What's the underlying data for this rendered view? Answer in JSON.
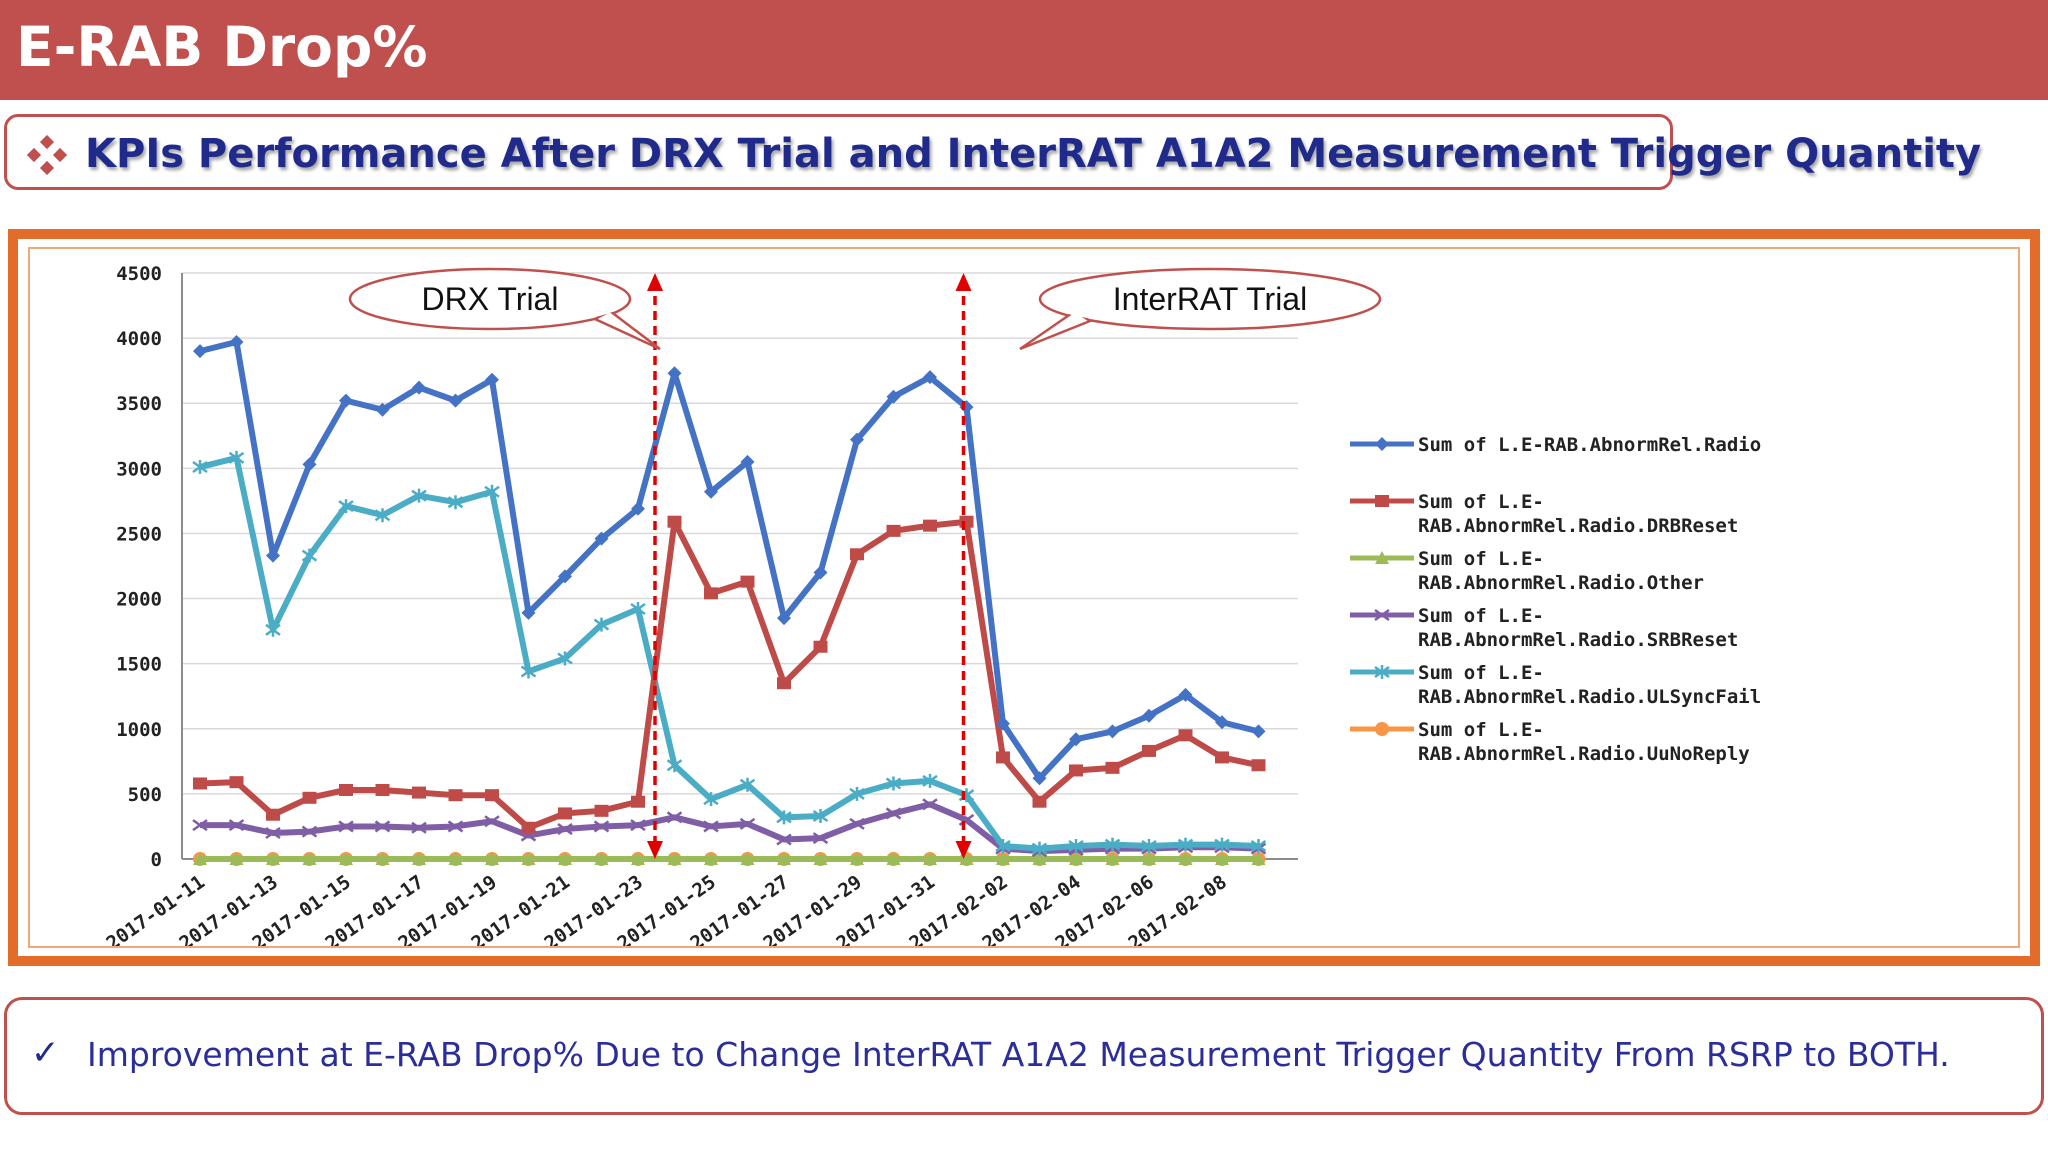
{
  "header": {
    "title": "E-RAB Drop%"
  },
  "subtitle": {
    "text": "KPIs Performance After DRX Trial and InterRAT A1A2 Measurement Trigger Quantity"
  },
  "note": {
    "check": "✓",
    "text": "Improvement at E-RAB Drop% Due to Change InterRAT A1A2 Measurement Trigger Quantity From RSRP to BOTH."
  },
  "chart_data": {
    "type": "line",
    "title": "",
    "xlabel": "",
    "ylabel": "",
    "ylim": [
      0,
      4500
    ],
    "yticks": [
      0,
      500,
      1000,
      1500,
      2000,
      2500,
      3000,
      3500,
      4000,
      4500
    ],
    "grid": "horizontal",
    "legend_position": "right",
    "x": [
      "2017-01-11",
      "2017-01-12",
      "2017-01-13",
      "2017-01-14",
      "2017-01-15",
      "2017-01-16",
      "2017-01-17",
      "2017-01-18",
      "2017-01-19",
      "2017-01-20",
      "2017-01-21",
      "2017-01-22",
      "2017-01-23",
      "2017-01-24",
      "2017-01-25",
      "2017-01-26",
      "2017-01-27",
      "2017-01-28",
      "2017-01-29",
      "2017-01-30",
      "2017-01-31",
      "2017-02-01",
      "2017-02-02",
      "2017-02-03",
      "2017-02-04",
      "2017-02-05",
      "2017-02-06",
      "2017-02-07",
      "2017-02-08",
      "2017-02-09"
    ],
    "x_tick_labels": [
      "2017-01-11",
      "2017-01-13",
      "2017-01-15",
      "2017-01-17",
      "2017-01-19",
      "2017-01-21",
      "2017-01-23",
      "2017-01-25",
      "2017-01-27",
      "2017-01-29",
      "2017-01-31",
      "2017-02-02",
      "2017-02-04",
      "2017-02-06",
      "2017-02-08"
    ],
    "series": [
      {
        "name": "Sum of L.E-RAB.AbnormRel.Radio",
        "color": "#4472c4",
        "marker": "diamond",
        "values": [
          3900,
          3970,
          2330,
          3030,
          3520,
          3450,
          3620,
          3520,
          3680,
          1890,
          2170,
          2460,
          2690,
          3730,
          2820,
          3050,
          1850,
          2200,
          3220,
          3550,
          3700,
          3470,
          1040,
          620,
          920,
          980,
          1100,
          1260,
          1050,
          980
        ]
      },
      {
        "name": "Sum of L.E-RAB.AbnormRel.Radio.DRBReset",
        "color": "#be4b48",
        "marker": "square",
        "values": [
          580,
          590,
          340,
          470,
          530,
          530,
          510,
          490,
          490,
          240,
          350,
          370,
          440,
          2590,
          2040,
          2130,
          1350,
          1630,
          2340,
          2520,
          2560,
          2590,
          780,
          440,
          680,
          700,
          830,
          950,
          780,
          720
        ]
      },
      {
        "name": "Sum of L.E-RAB.AbnormRel.Radio.Other",
        "color": "#9bbb59",
        "marker": "triangle",
        "values": [
          0,
          0,
          0,
          0,
          0,
          0,
          0,
          0,
          0,
          0,
          0,
          0,
          0,
          0,
          0,
          0,
          0,
          0,
          0,
          0,
          0,
          0,
          0,
          0,
          0,
          0,
          0,
          0,
          0,
          0
        ]
      },
      {
        "name": "Sum of L.E-RAB.AbnormRel.Radio.SRBReset",
        "color": "#7f5ea6",
        "marker": "x",
        "values": [
          260,
          260,
          200,
          210,
          250,
          250,
          240,
          250,
          290,
          180,
          230,
          250,
          260,
          320,
          250,
          270,
          150,
          160,
          270,
          350,
          420,
          300,
          80,
          60,
          70,
          80,
          80,
          90,
          90,
          80
        ]
      },
      {
        "name": "Sum of L.E-RAB.AbnormRel.Radio.ULSyncFail",
        "color": "#4bacc6",
        "marker": "star",
        "values": [
          3010,
          3080,
          1760,
          2330,
          2710,
          2640,
          2790,
          2740,
          2820,
          1440,
          1540,
          1800,
          1920,
          720,
          460,
          570,
          320,
          330,
          500,
          580,
          600,
          490,
          100,
          80,
          100,
          110,
          100,
          110,
          110,
          100
        ]
      },
      {
        "name": "Sum of L.E-RAB.AbnormRel.Radio.UuNoReply",
        "color": "#f79646",
        "marker": "circle",
        "values": [
          0,
          0,
          0,
          0,
          0,
          0,
          0,
          0,
          0,
          0,
          0,
          0,
          0,
          0,
          0,
          0,
          0,
          0,
          0,
          0,
          0,
          0,
          0,
          0,
          0,
          0,
          0,
          0,
          0,
          0
        ]
      }
    ],
    "legend_lines": [
      [
        "Sum of L.E-RAB.AbnormRel.Radio"
      ],
      [
        "Sum of L.E-",
        "RAB.AbnormRel.Radio.DRBReset"
      ],
      [
        "Sum of L.E-",
        "RAB.AbnormRel.Radio.Other"
      ],
      [
        "Sum of L.E-",
        "RAB.AbnormRel.Radio.SRBReset"
      ],
      [
        "Sum of L.E-",
        "RAB.AbnormRel.Radio.ULSyncFail"
      ],
      [
        "Sum of L.E-",
        "RAB.AbnormRel.Radio.UuNoReply"
      ]
    ],
    "annotations": [
      {
        "text": "DRX Trial",
        "x": "2017-01-23"
      },
      {
        "text": "InterRAT Trial",
        "x": "2017-02-01"
      }
    ]
  }
}
